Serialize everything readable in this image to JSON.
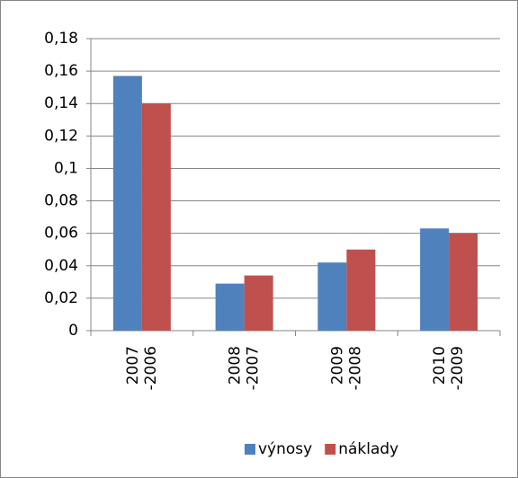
{
  "chart_data": {
    "type": "bar",
    "categories": [
      "2007 -2006",
      "2008 -2007",
      "2009 -2008",
      "2010 -2009"
    ],
    "series": [
      {
        "name": "výnosy",
        "color": "#4f81bd",
        "values": [
          0.157,
          0.029,
          0.042,
          0.063
        ]
      },
      {
        "name": "náklady",
        "color": "#c0504d",
        "values": [
          0.14,
          0.034,
          0.05,
          0.06
        ]
      }
    ],
    "ylim": [
      0,
      0.18
    ],
    "yticks": [
      0,
      {
        "value": 0.02,
        "label": "0,02"
      },
      {
        "value": 0.04,
        "label": "0,04"
      },
      {
        "value": 0.06,
        "label": "0,06"
      },
      {
        "value": 0.08,
        "label": "0,08"
      },
      {
        "value": 0.1,
        "label": "0,1"
      },
      {
        "value": 0.12,
        "label": "0,12"
      },
      {
        "value": 0.14,
        "label": "0,14"
      },
      {
        "value": 0.16,
        "label": "0,16"
      },
      {
        "value": 0.18,
        "label": "0,18"
      }
    ],
    "grid": true,
    "legend": "bottom"
  }
}
